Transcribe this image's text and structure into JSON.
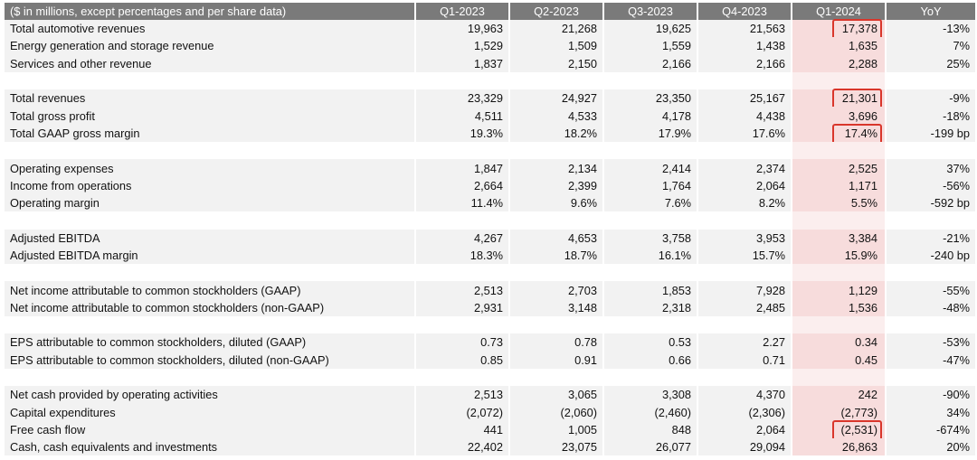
{
  "header": [
    "($ in millions, except percentages and per share data)",
    "Q1-2023",
    "Q2-2023",
    "Q3-2023",
    "Q4-2023",
    "Q1-2024",
    "YoY"
  ],
  "rows": [
    {
      "label": "Total automotive revenues",
      "values": [
        "19,963",
        "21,268",
        "19,625",
        "21,563",
        "17,378",
        "-13%"
      ],
      "highlight": true
    },
    {
      "label": "Energy generation and storage revenue",
      "values": [
        "1,529",
        "1,509",
        "1,559",
        "1,438",
        "1,635",
        "7%"
      ]
    },
    {
      "label": "Services and other revenue",
      "values": [
        "1,837",
        "2,150",
        "2,166",
        "2,166",
        "2,288",
        "25%"
      ]
    },
    {
      "spacer": true
    },
    {
      "label": "Total revenues",
      "values": [
        "23,329",
        "24,927",
        "23,350",
        "25,167",
        "21,301",
        "-9%"
      ],
      "highlight": true
    },
    {
      "label": "Total gross profit",
      "values": [
        "4,511",
        "4,533",
        "4,178",
        "4,438",
        "3,696",
        "-18%"
      ]
    },
    {
      "label": "Total GAAP gross margin",
      "values": [
        "19.3%",
        "18.2%",
        "17.9%",
        "17.6%",
        "17.4%",
        "-199 bp"
      ],
      "highlight": true
    },
    {
      "spacer": true
    },
    {
      "label": "Operating expenses",
      "values": [
        "1,847",
        "2,134",
        "2,414",
        "2,374",
        "2,525",
        "37%"
      ]
    },
    {
      "label": "Income from operations",
      "values": [
        "2,664",
        "2,399",
        "1,764",
        "2,064",
        "1,171",
        "-56%"
      ]
    },
    {
      "label": "Operating margin",
      "values": [
        "11.4%",
        "9.6%",
        "7.6%",
        "8.2%",
        "5.5%",
        "-592 bp"
      ]
    },
    {
      "spacer": true
    },
    {
      "label": "Adjusted EBITDA",
      "values": [
        "4,267",
        "4,653",
        "3,758",
        "3,953",
        "3,384",
        "-21%"
      ]
    },
    {
      "label": "Adjusted EBITDA margin",
      "values": [
        "18.3%",
        "18.7%",
        "16.1%",
        "15.7%",
        "15.9%",
        "-240 bp"
      ]
    },
    {
      "spacer": true
    },
    {
      "label": "Net income attributable to common stockholders (GAAP)",
      "values": [
        "2,513",
        "2,703",
        "1,853",
        "7,928",
        "1,129",
        "-55%"
      ]
    },
    {
      "label": "Net income attributable to common stockholders (non-GAAP)",
      "values": [
        "2,931",
        "3,148",
        "2,318",
        "2,485",
        "1,536",
        "-48%"
      ]
    },
    {
      "spacer": true
    },
    {
      "label": "EPS attributable to common stockholders, diluted (GAAP)",
      "values": [
        "0.73",
        "0.78",
        "0.53",
        "2.27",
        "0.34",
        "-53%"
      ]
    },
    {
      "label": "EPS attributable to common stockholders, diluted (non-GAAP)",
      "values": [
        "0.85",
        "0.91",
        "0.66",
        "0.71",
        "0.45",
        "-47%"
      ]
    },
    {
      "spacer": true
    },
    {
      "label": "Net cash provided by operating activities",
      "values": [
        "2,513",
        "3,065",
        "3,308",
        "4,370",
        "242",
        "-90%"
      ]
    },
    {
      "label": "Capital expenditures",
      "values": [
        "(2,072)",
        "(2,060)",
        "(2,460)",
        "(2,306)",
        "(2,773)",
        "34%"
      ]
    },
    {
      "label": "Free cash flow",
      "values": [
        "441",
        "1,005",
        "848",
        "2,064",
        "(2,531)",
        "-674%"
      ],
      "highlight": true
    },
    {
      "label": "Cash, cash equivalents and investments",
      "values": [
        "22,402",
        "23,075",
        "26,077",
        "29,094",
        "26,863",
        "20%"
      ]
    }
  ],
  "colors": {
    "header_bg": "#7a7a7a",
    "row_bg": "#f2f2f2",
    "highlight_col_bg": "#f7dcdc",
    "highlight_box": "#d9362b"
  }
}
